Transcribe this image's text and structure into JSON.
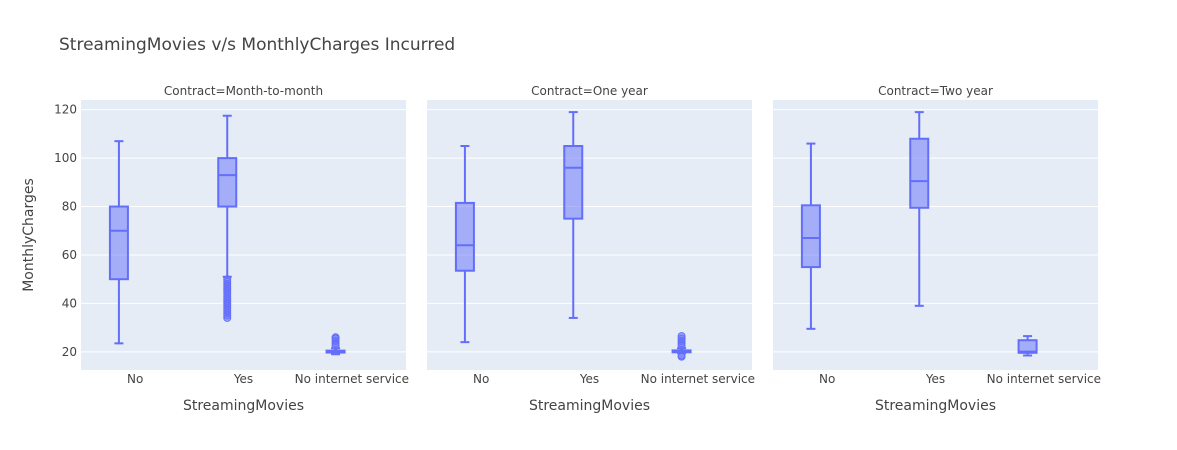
{
  "chart_data": {
    "type": "box",
    "title": "StreamingMovies v/s MonthlyCharges Incurred",
    "ylabel": "MonthlyCharges",
    "xlabel": "StreamingMovies",
    "categories": [
      "No",
      "Yes",
      "No internet service"
    ],
    "ylim": [
      12.5,
      124
    ],
    "yticks": [
      20,
      40,
      60,
      80,
      100,
      120
    ],
    "grid": true,
    "color": "#636efa",
    "fill": "rgba(99,110,250,0.5)",
    "background": "#e5ecf6",
    "facets": [
      {
        "title": "Contract=Month-to-month",
        "boxes": [
          {
            "category": "No",
            "min": 23.5,
            "q1": 50,
            "median": 70,
            "q3": 80,
            "max": 107,
            "outliers": []
          },
          {
            "category": "Yes",
            "min": 51,
            "q1": 80,
            "median": 93,
            "q3": 100,
            "max": 117.5,
            "outliers": [
              34,
              35,
              36,
              37,
              38,
              39,
              40,
              41,
              42,
              43,
              44,
              45,
              46,
              47,
              48,
              49,
              50
            ]
          },
          {
            "category": "No internet service",
            "min": 19,
            "q1": 19.7,
            "median": 20.05,
            "q3": 20.5,
            "max": 21.5,
            "outliers": [
              22.5,
              23.5,
              24.5,
              25.5,
              26
            ]
          }
        ]
      },
      {
        "title": "Contract=One year",
        "boxes": [
          {
            "category": "No",
            "min": 24,
            "q1": 53.5,
            "median": 64,
            "q3": 81.5,
            "max": 105,
            "outliers": []
          },
          {
            "category": "Yes",
            "min": 34,
            "q1": 75,
            "median": 96,
            "q3": 105,
            "max": 119,
            "outliers": []
          },
          {
            "category": "No internet service",
            "min": 19.5,
            "q1": 19.8,
            "median": 20.1,
            "q3": 20.6,
            "max": 21.5,
            "outliers": [
              18,
              18.5,
              22.5,
              23.5,
              24.5,
              25.5,
              26.5
            ]
          }
        ]
      },
      {
        "title": "Contract=Two year",
        "boxes": [
          {
            "category": "No",
            "min": 29.5,
            "q1": 55,
            "median": 67,
            "q3": 80.5,
            "max": 106,
            "outliers": []
          },
          {
            "category": "Yes",
            "min": 39,
            "q1": 79.5,
            "median": 90.5,
            "q3": 108,
            "max": 119,
            "outliers": []
          },
          {
            "category": "No internet service",
            "min": 18.5,
            "q1": 19.6,
            "median": 20.1,
            "q3": 24.8,
            "max": 26.5,
            "outliers": []
          }
        ]
      }
    ]
  }
}
